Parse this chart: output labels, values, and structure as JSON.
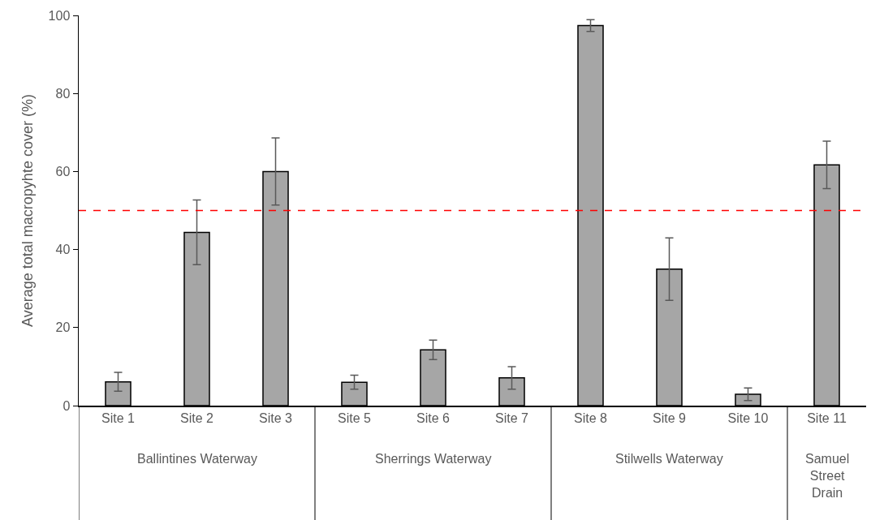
{
  "chart_data": {
    "type": "bar",
    "ylabel": "Average total macropyhte cover (%)",
    "categories": [
      "Site 1",
      "Site 2",
      "Site 3",
      "Site 5",
      "Site 6",
      "Site 7",
      "Site 8",
      "Site 9",
      "Site 10",
      "Site 11"
    ],
    "values": [
      6.1,
      44.4,
      60.0,
      6.0,
      14.3,
      7.1,
      97.4,
      35.0,
      2.9,
      61.7
    ],
    "errors": [
      2.4,
      8.3,
      8.6,
      1.8,
      2.5,
      2.9,
      1.5,
      8.0,
      1.6,
      6.1
    ],
    "color": "#a6a6a6",
    "ylim": [
      0,
      100
    ],
    "yticks": [
      0,
      20,
      40,
      60,
      80,
      100
    ],
    "grid": false,
    "ref_lines": [
      {
        "axis": "y",
        "value": 50,
        "color": "#ff0000",
        "line_style": "dashed"
      }
    ],
    "annotations": [
      "Ballintines Waterway",
      "Sherrings Waterway",
      "Stilwells Waterway",
      "Samuel Street Drain"
    ]
  }
}
